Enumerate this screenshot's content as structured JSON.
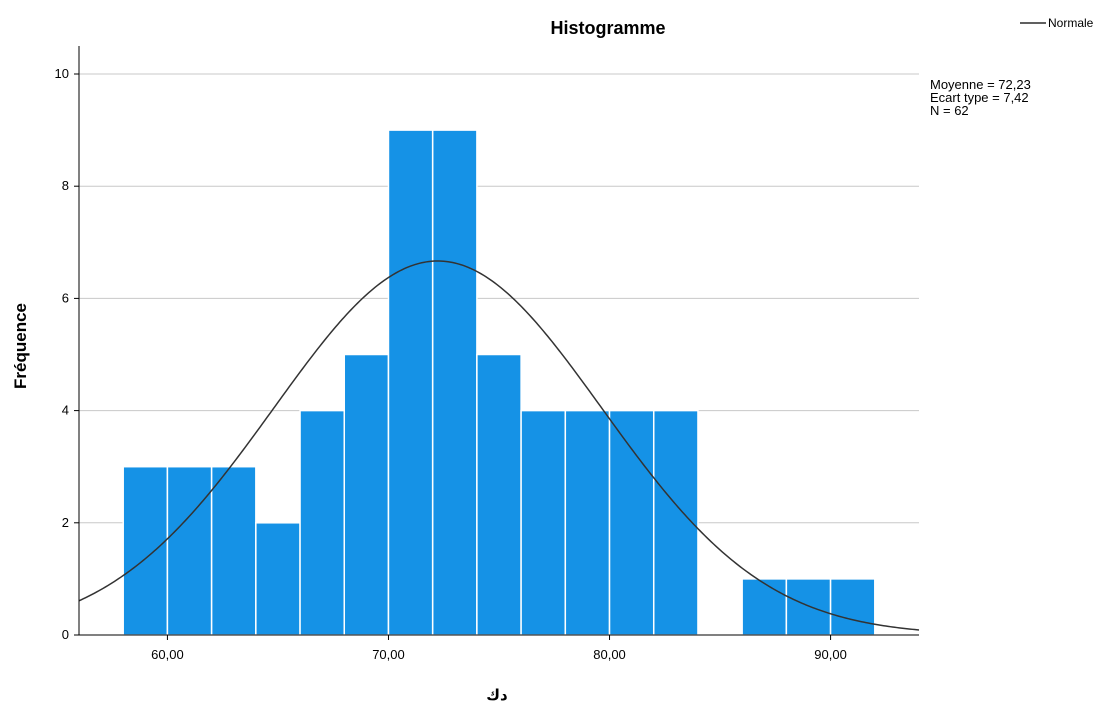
{
  "chart_data": {
    "type": "bar",
    "subtype": "histogram",
    "title": "Histogramme",
    "xlabel": "ﺩﻙ",
    "ylabel": "Fréquence",
    "bin_width": 2,
    "bins": [
      {
        "start": 58,
        "end": 60,
        "count": 3
      },
      {
        "start": 60,
        "end": 62,
        "count": 3
      },
      {
        "start": 62,
        "end": 64,
        "count": 3
      },
      {
        "start": 64,
        "end": 66,
        "count": 2
      },
      {
        "start": 66,
        "end": 68,
        "count": 4
      },
      {
        "start": 68,
        "end": 70,
        "count": 5
      },
      {
        "start": 70,
        "end": 72,
        "count": 9
      },
      {
        "start": 72,
        "end": 74,
        "count": 9
      },
      {
        "start": 74,
        "end": 76,
        "count": 5
      },
      {
        "start": 76,
        "end": 78,
        "count": 4
      },
      {
        "start": 78,
        "end": 80,
        "count": 4
      },
      {
        "start": 80,
        "end": 82,
        "count": 4
      },
      {
        "start": 82,
        "end": 84,
        "count": 4
      },
      {
        "start": 86,
        "end": 88,
        "count": 1
      },
      {
        "start": 88,
        "end": 90,
        "count": 1
      },
      {
        "start": 90,
        "end": 92,
        "count": 1
      }
    ],
    "xlim": [
      56,
      94
    ],
    "ylim": [
      0,
      10.5
    ],
    "x_ticks": [
      60,
      70,
      80,
      90
    ],
    "x_tick_labels": [
      "60,00",
      "70,00",
      "80,00",
      "90,00"
    ],
    "y_ticks": [
      0,
      2,
      4,
      6,
      8,
      10
    ],
    "y_tick_labels": [
      "0",
      "2",
      "4",
      "6",
      "8",
      "10"
    ],
    "grid": "horizontal",
    "normal_curve": {
      "name": "Normale",
      "mean": 72.23,
      "sd": 7.42,
      "n": 62
    },
    "stats": [
      "Moyenne = 72,23",
      "Ecart type = 7,42",
      "N = 62"
    ],
    "legend_position": "top-right",
    "colors": {
      "bar": "#1592e6",
      "bar_edge": "#ffffff",
      "curve": "#333333",
      "grid": "#c8c8c8",
      "axis": "#000000"
    }
  }
}
